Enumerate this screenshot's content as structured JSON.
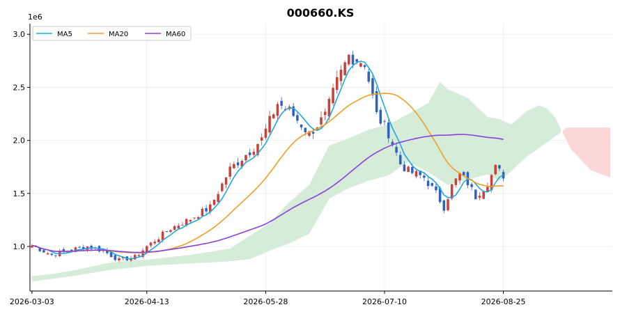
{
  "chart_data": {
    "type": "candlestick",
    "title": "000660.KS",
    "y_offset_label": "1e6",
    "ylim": [
      0.58,
      3.1
    ],
    "yticks": [
      1.0,
      1.5,
      2.0,
      2.5,
      3.0
    ],
    "ytick_labels": [
      "1.0",
      "1.5",
      "2.0",
      "2.5",
      "3.0"
    ],
    "xtick_labels": [
      "2026-03-03",
      "2026-04-13",
      "2026-05-28",
      "2026-07-10",
      "2026-08-25"
    ],
    "xtick_index": [
      0,
      29,
      59,
      89,
      119
    ],
    "n_candles": 120,
    "x_extent": [
      -0.5,
      146.5
    ],
    "grid": true,
    "legend_position": "top-left",
    "series": [
      {
        "name": "MA5",
        "color": "#1fa8e0"
      },
      {
        "name": "MA20",
        "color": "#f0a020"
      },
      {
        "name": "MA60",
        "color": "#8a3fdc"
      }
    ],
    "colors": {
      "up": "#c8413a",
      "down": "#3060c0",
      "cloud_bull": "#d4ecd8",
      "cloud_bear": "#fbd7d7"
    },
    "close_anchors": [
      [
        0,
        1.01
      ],
      [
        5,
        0.92
      ],
      [
        10,
        0.97
      ],
      [
        14,
        1.0
      ],
      [
        18,
        0.96
      ],
      [
        22,
        0.87
      ],
      [
        26,
        0.9
      ],
      [
        29,
        1.0
      ],
      [
        35,
        1.17
      ],
      [
        40,
        1.26
      ],
      [
        45,
        1.37
      ],
      [
        50,
        1.73
      ],
      [
        55,
        1.9
      ],
      [
        58,
        2.01
      ],
      [
        62,
        2.35
      ],
      [
        65,
        2.28
      ],
      [
        70,
        2.06
      ],
      [
        74,
        2.23
      ],
      [
        77,
        2.55
      ],
      [
        80,
        2.8
      ],
      [
        84,
        2.73
      ],
      [
        87,
        2.24
      ],
      [
        90,
        2.07
      ],
      [
        93,
        1.78
      ],
      [
        95,
        1.71
      ],
      [
        99,
        1.65
      ],
      [
        102,
        1.5
      ],
      [
        104,
        1.37
      ],
      [
        106,
        1.57
      ],
      [
        108,
        1.68
      ],
      [
        110,
        1.6
      ],
      [
        112,
        1.47
      ],
      [
        115,
        1.6
      ],
      [
        117,
        1.74
      ],
      [
        119,
        1.67
      ]
    ],
    "cloud_span_a": [
      [
        0,
        0.72
      ],
      [
        5,
        0.74
      ],
      [
        10,
        0.77
      ],
      [
        20,
        0.85
      ],
      [
        30,
        0.88
      ],
      [
        40,
        0.92
      ],
      [
        50,
        0.98
      ],
      [
        55,
        1.1
      ],
      [
        60,
        1.22
      ],
      [
        65,
        1.42
      ],
      [
        70,
        1.58
      ],
      [
        75,
        1.95
      ],
      [
        80,
        2.02
      ],
      [
        85,
        2.1
      ],
      [
        90,
        2.15
      ],
      [
        95,
        2.25
      ],
      [
        100,
        2.35
      ],
      [
        103,
        2.55
      ],
      [
        105,
        2.48
      ],
      [
        110,
        2.4
      ],
      [
        115,
        2.22
      ],
      [
        118,
        2.2
      ],
      [
        121,
        2.15
      ],
      [
        125,
        2.28
      ],
      [
        128,
        2.33
      ],
      [
        130,
        2.3
      ],
      [
        132,
        2.22
      ],
      [
        134,
        2.07
      ],
      [
        136,
        1.92
      ],
      [
        141,
        1.72
      ],
      [
        146,
        1.65
      ]
    ],
    "cloud_span_b": [
      [
        0,
        0.67
      ],
      [
        10,
        0.72
      ],
      [
        20,
        0.78
      ],
      [
        30,
        0.82
      ],
      [
        40,
        0.84
      ],
      [
        50,
        0.86
      ],
      [
        55,
        0.88
      ],
      [
        60,
        0.96
      ],
      [
        65,
        1.03
      ],
      [
        70,
        1.12
      ],
      [
        72,
        1.25
      ],
      [
        75,
        1.45
      ],
      [
        80,
        1.55
      ],
      [
        85,
        1.62
      ],
      [
        90,
        1.67
      ],
      [
        95,
        1.8
      ],
      [
        100,
        1.7
      ],
      [
        105,
        1.58
      ],
      [
        110,
        1.63
      ],
      [
        115,
        1.68
      ],
      [
        118,
        1.62
      ],
      [
        121,
        1.71
      ],
      [
        125,
        1.85
      ],
      [
        130,
        1.98
      ],
      [
        135,
        2.12
      ],
      [
        140,
        2.12
      ],
      [
        146,
        2.12
      ]
    ]
  }
}
